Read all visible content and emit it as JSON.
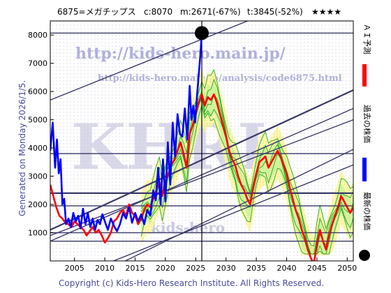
{
  "header": {
    "code_name": "6875=メガチップス",
    "current": "c:8070",
    "min": "m:2671(-67%)",
    "target": "t:3845(-52%)",
    "stars": "★★★★"
  },
  "left_note": "Generated on Monday 2026/1/5.",
  "footer": "Copyright (c) Kids-Hero Research Institute. All Rights Reserved.",
  "watermark": {
    "url1": "http://kids-hero.main.jp/",
    "url2": "http://kids-hero.main.jp/analysis/code6875.html",
    "big": "KHRI",
    "bottom": "kids-hero"
  },
  "legend": [
    {
      "label": "ＡＩ予測",
      "color": "#ff0000"
    },
    {
      "label": "過去の株価",
      "color": "#0000ff"
    },
    {
      "label": "最新の株価",
      "color": "#000000"
    }
  ],
  "chart_data": {
    "type": "line",
    "xlim": [
      2001,
      2051
    ],
    "ylim": [
      0,
      8500
    ],
    "x_ticks": [
      2005,
      2010,
      2015,
      2020,
      2025,
      2030,
      2035,
      2040,
      2045,
      2050
    ],
    "y_ticks": [
      1000,
      2000,
      3000,
      4000,
      5000,
      6000,
      7000,
      8000
    ],
    "latest_point": {
      "x": 2026.0,
      "y": 8070
    },
    "vertical_line_x": 2026.0,
    "horizontal_lines": [
      8070,
      3800,
      2400,
      1950,
      1000,
      700
    ],
    "channel_lines": [
      {
        "x0": 2001,
        "y0": 5700,
        "x1": 2051,
        "y1": 10000
      },
      {
        "x0": 2001,
        "y0": 1100,
        "x1": 2051,
        "y1": 6050
      },
      {
        "x0": 2001,
        "y0": 700,
        "x1": 2051,
        "y1": 5400
      },
      {
        "x0": 2001,
        "y0": 900,
        "x1": 2051,
        "y1": 5000
      },
      {
        "x0": 2001,
        "y0": -1300,
        "x1": 2051,
        "y1": 3950
      },
      {
        "x0": 2001,
        "y0": -900,
        "x1": 2051,
        "y1": 3400
      }
    ],
    "series": [
      {
        "name": "過去の株価",
        "color": "#0000ff",
        "x": [
          2001.0,
          2001.4,
          2001.8,
          2002.1,
          2002.4,
          2002.7,
          2003.0,
          2003.3,
          2003.6,
          2004.0,
          2004.4,
          2004.8,
          2005.2,
          2005.6,
          2006.0,
          2006.4,
          2006.8,
          2007.2,
          2007.6,
          2008.0,
          2008.4,
          2008.8,
          2009.2,
          2009.6,
          2010.0,
          2010.5,
          2011.0,
          2011.5,
          2012.0,
          2012.5,
          2013.0,
          2013.5,
          2014.0,
          2014.5,
          2015.0,
          2015.5,
          2016.0,
          2016.5,
          2017.0,
          2017.5,
          2018.0,
          2018.4,
          2018.8,
          2019.2,
          2019.6,
          2020.0,
          2020.4,
          2020.8,
          2021.2,
          2021.6,
          2022.0,
          2022.4,
          2022.8,
          2023.2,
          2023.6,
          2024.0,
          2024.3,
          2024.6,
          2024.9,
          2025.2,
          2025.5,
          2025.8,
          2026.0
        ],
        "y": [
          3900,
          4900,
          3300,
          4300,
          3100,
          3600,
          2000,
          2200,
          1300,
          1500,
          1200,
          1700,
          1400,
          1600,
          1150,
          1850,
          1300,
          1700,
          1200,
          1500,
          1100,
          1450,
          1300,
          1650,
          1400,
          1100,
          1500,
          1250,
          1050,
          1300,
          1700,
          1500,
          1900,
          1350,
          1700,
          1400,
          1650,
          1300,
          1800,
          1600,
          2500,
          2150,
          3300,
          2000,
          3600,
          2100,
          4200,
          2700,
          4900,
          3700,
          5200,
          4500,
          4400,
          5400,
          4300,
          6200,
          5000,
          5500,
          4900,
          5800,
          6600,
          7400,
          8070
        ]
      },
      {
        "name": "ＡＩ予測",
        "color": "#ff0000",
        "x": [
          2001.0,
          2001.5,
          2002.0,
          2002.5,
          2003.0,
          2003.5,
          2004.0,
          2004.5,
          2005.0,
          2005.5,
          2006.0,
          2006.5,
          2007.0,
          2007.5,
          2008.0,
          2008.5,
          2009.0,
          2009.5,
          2010.0,
          2010.5,
          2011.0,
          2011.5,
          2012.0,
          2012.5,
          2013.0,
          2013.5,
          2014.0,
          2014.5,
          2015.0,
          2015.5,
          2016.0,
          2016.5,
          2017.0,
          2017.5,
          2018.0,
          2018.5,
          2019.0,
          2019.5,
          2020.0,
          2020.5,
          2021.0,
          2021.5,
          2022.0,
          2022.5,
          2023.0,
          2023.5,
          2024.0,
          2024.5,
          2025.0,
          2025.5,
          2026.0,
          2026.5,
          2027.0,
          2027.5,
          2028.0,
          2028.5,
          2029.0,
          2029.5,
          2030.0,
          2030.5,
          2031.0,
          2031.5,
          2032.0,
          2032.5,
          2033.0,
          2033.5,
          2034.0,
          2034.5,
          2035.0,
          2035.5,
          2036.0,
          2036.5,
          2037.0,
          2037.5,
          2038.0,
          2038.5,
          2039.0,
          2039.5,
          2040.0,
          2040.5,
          2041.0,
          2041.5,
          2042.0,
          2042.5,
          2043.0,
          2043.5,
          2044.0,
          2044.5,
          2045.0,
          2045.5,
          2046.0,
          2046.5,
          2047.0,
          2047.5,
          2048.0,
          2048.5,
          2049.0,
          2049.5,
          2050.0,
          2050.5,
          2051.0
        ],
        "y": [
          2700,
          2300,
          1900,
          1600,
          1500,
          1350,
          1300,
          1200,
          1400,
          1300,
          1200,
          1100,
          900,
          1050,
          1200,
          1000,
          1100,
          900,
          650,
          800,
          1000,
          1400,
          1500,
          1700,
          1800,
          1600,
          2000,
          1700,
          1600,
          1300,
          1500,
          1800,
          2000,
          1900,
          2200,
          2500,
          2800,
          2300,
          2800,
          3100,
          3400,
          3600,
          3900,
          4200,
          3800,
          3300,
          4500,
          4800,
          5200,
          5600,
          5900,
          5500,
          5800,
          5700,
          5900,
          5600,
          5200,
          4800,
          4400,
          3900,
          3600,
          3400,
          3000,
          2700,
          2500,
          2200,
          2000,
          2600,
          3100,
          3500,
          3600,
          3700,
          3300,
          3500,
          3700,
          3900,
          3700,
          3400,
          3100,
          2600,
          2200,
          1800,
          1500,
          1100,
          800,
          400,
          100,
          -100,
          600,
          1100,
          700,
          400,
          900,
          1300,
          1600,
          1900,
          2300,
          2100,
          1900,
          1700,
          1900
        ]
      }
    ]
  }
}
